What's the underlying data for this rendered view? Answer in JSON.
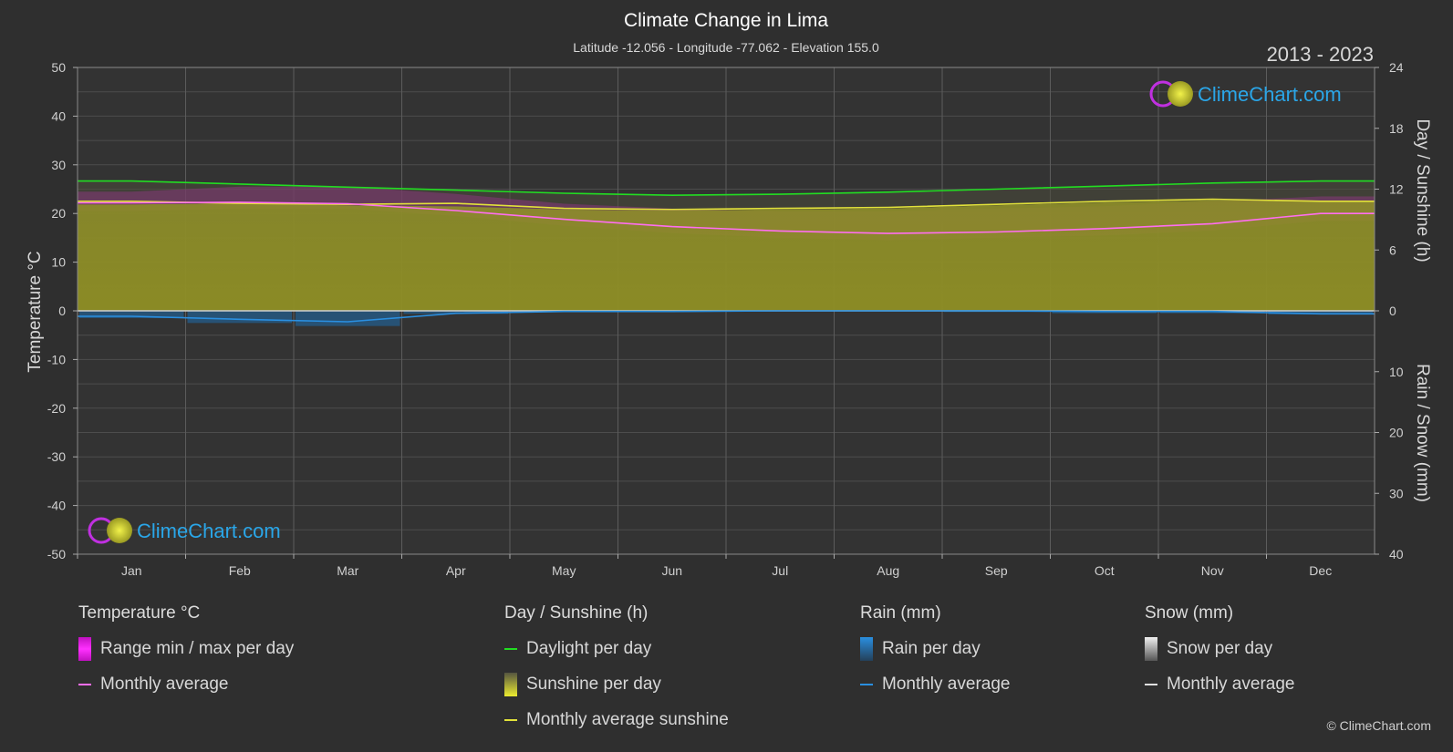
{
  "header": {
    "title": "Climate Change in Lima",
    "subtitle": "Latitude -12.056 - Longitude -77.062 - Elevation 155.0",
    "period": "2013 - 2023"
  },
  "brand": {
    "logo_text": "ClimeChart.com",
    "copyright": "© ClimeChart.com"
  },
  "chart_data": {
    "type": "area",
    "categories": [
      "Jan",
      "Feb",
      "Mar",
      "Apr",
      "May",
      "Jun",
      "Jul",
      "Aug",
      "Sep",
      "Oct",
      "Nov",
      "Dec"
    ],
    "axes": {
      "left": {
        "label": "Temperature °C",
        "range": [
          -50,
          50
        ],
        "ticks": [
          50,
          40,
          30,
          20,
          10,
          0,
          -10,
          -20,
          -30,
          -40,
          -50
        ]
      },
      "right_top": {
        "label": "Day / Sunshine (h)",
        "range": [
          0,
          24
        ],
        "ticks": [
          24,
          18,
          12,
          6,
          0
        ]
      },
      "right_bottom": {
        "label": "Rain / Snow (mm)",
        "range": [
          0,
          40
        ],
        "ticks": [
          10,
          20,
          30,
          40
        ]
      }
    },
    "grid": true,
    "series": [
      {
        "name": "Range min / max per day",
        "unit": "°C",
        "min": [
          20.5,
          21.0,
          21.0,
          19.5,
          17.5,
          16.0,
          15.0,
          14.5,
          15.0,
          15.5,
          16.5,
          18.5
        ],
        "max": [
          24.5,
          25.5,
          25.5,
          24.0,
          22.0,
          21.0,
          20.5,
          20.5,
          21.0,
          21.5,
          22.5,
          23.5
        ],
        "color": "#e020d8"
      },
      {
        "name": "Monthly average",
        "group": "Temperature °C",
        "unit": "°C",
        "values": [
          22.2,
          22.3,
          22.0,
          20.6,
          18.8,
          17.3,
          16.4,
          15.9,
          16.2,
          16.9,
          17.9,
          20.0
        ],
        "color": "#ff6ef0"
      },
      {
        "name": "Daylight per day",
        "unit": "h",
        "values": [
          12.8,
          12.5,
          12.2,
          11.9,
          11.6,
          11.4,
          11.5,
          11.7,
          12.0,
          12.3,
          12.6,
          12.8
        ],
        "color": "#22dd22"
      },
      {
        "name": "Sunshine per day",
        "unit": "h",
        "values": [
          10.5,
          10.6,
          10.4,
          10.3,
          10.0,
          9.9,
          10.0,
          10.1,
          10.4,
          10.7,
          10.9,
          10.8
        ],
        "color": "#c8c832"
      },
      {
        "name": "Monthly average sunshine",
        "unit": "h",
        "values": [
          10.8,
          10.6,
          10.5,
          10.6,
          10.1,
          10.0,
          10.1,
          10.2,
          10.5,
          10.8,
          11.0,
          10.8
        ],
        "color": "#e2e23a"
      },
      {
        "name": "Rain per day",
        "unit": "mm",
        "values": [
          1.2,
          2.0,
          2.5,
          0.5,
          0.2,
          0.1,
          0.1,
          0.1,
          0.2,
          0.4,
          0.4,
          0.6
        ],
        "color": "#2a8fe0"
      },
      {
        "name": "Monthly average",
        "group": "Rain (mm)",
        "unit": "mm",
        "values": [
          0.9,
          1.4,
          1.8,
          0.4,
          0.1,
          0.1,
          0.0,
          0.0,
          0.0,
          0.1,
          0.1,
          0.5
        ],
        "color": "#2a8fe0"
      },
      {
        "name": "Snow per day",
        "unit": "mm",
        "values": [
          0,
          0,
          0,
          0,
          0,
          0,
          0,
          0,
          0,
          0,
          0,
          0
        ],
        "color": "#cccccc"
      },
      {
        "name": "Monthly average",
        "group": "Snow (mm)",
        "unit": "mm",
        "values": [
          0,
          0,
          0,
          0,
          0,
          0,
          0,
          0,
          0,
          0,
          0,
          0
        ],
        "color": "#e0e0e0"
      }
    ]
  },
  "legend": {
    "groups": [
      {
        "title": "Temperature °C",
        "items": [
          {
            "label": "Range min / max per day",
            "kind": "swatch",
            "color": "#e020d8"
          },
          {
            "label": "Monthly average",
            "kind": "line",
            "color": "#ff6ef0"
          }
        ]
      },
      {
        "title": "Day / Sunshine (h)",
        "items": [
          {
            "label": "Daylight per day",
            "kind": "line",
            "color": "#22dd22"
          },
          {
            "label": "Sunshine per day",
            "kind": "swatch",
            "color": "#c8c832"
          },
          {
            "label": "Monthly average sunshine",
            "kind": "line",
            "color": "#e2e23a"
          }
        ]
      },
      {
        "title": "Rain (mm)",
        "items": [
          {
            "label": "Rain per day",
            "kind": "swatch",
            "color": "#2a8fe0"
          },
          {
            "label": "Monthly average",
            "kind": "line",
            "color": "#2a8fe0"
          }
        ]
      },
      {
        "title": "Snow (mm)",
        "items": [
          {
            "label": "Snow per day",
            "kind": "swatch",
            "color": "#cccccc"
          },
          {
            "label": "Monthly average",
            "kind": "line",
            "color": "#e0e0e0"
          }
        ]
      }
    ]
  }
}
